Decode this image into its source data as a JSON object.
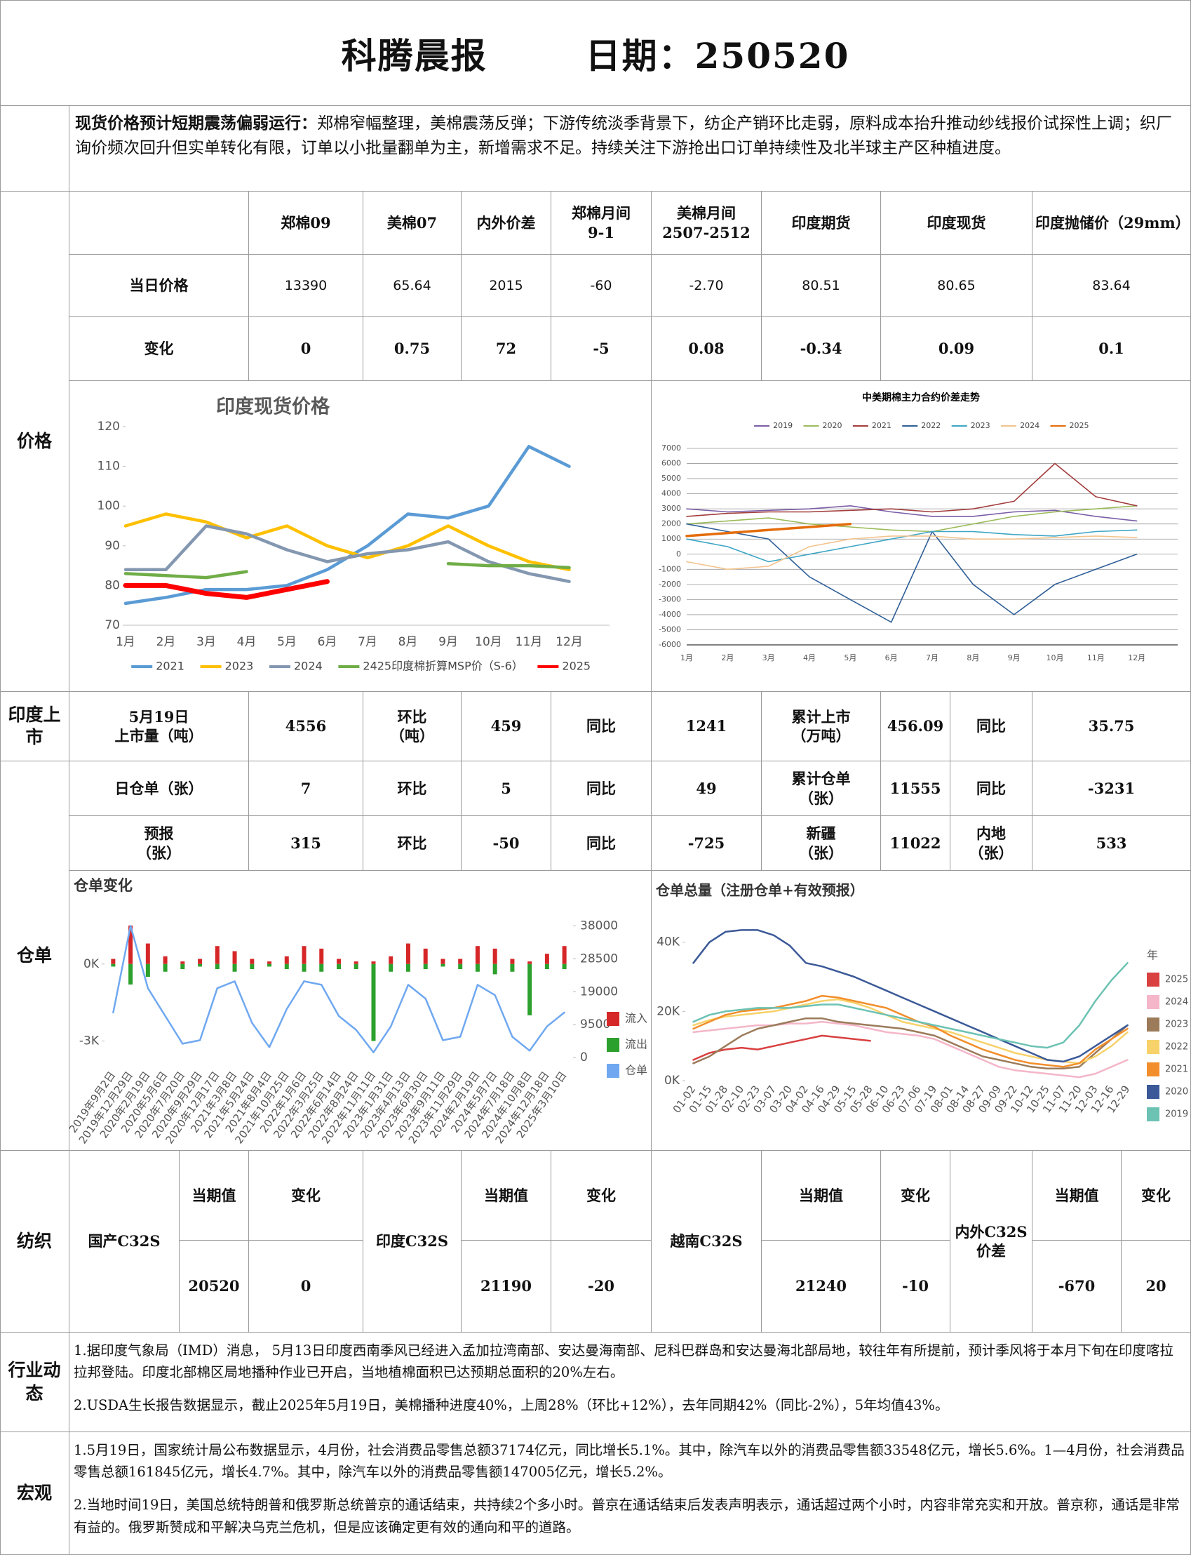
{
  "header": {
    "title": "科腾晨报",
    "date": "日期：250520"
  },
  "summary": {
    "lead": "现货价格预计短期震荡偏弱运行：",
    "body": "郑棉窄幅整理，美棉震荡反弹；下游传统淡季背景下，纺企产销环比走弱，原料成本抬升推动纱线报价试探性上调；织厂询价频次回升但实单转化有限，订单以小批量翻单为主，新增需求不足。持续关注下游抢出口订单持续性及北半球主产区种植进度。"
  },
  "sections": {
    "price": "价格",
    "india": "印度上\n市",
    "warehouse": "仓单",
    "textile": "纺织",
    "industry": "行业动\n态",
    "macro": "宏观"
  },
  "price_table": {
    "columns": [
      "郑棉09",
      "美棉07",
      "内外价差",
      "郑棉月间\n9-1",
      "美棉月间\n2507-2512",
      "印度期货",
      "印度现货",
      "印度抛储价（29mm）"
    ],
    "rows": [
      {
        "label": "当日价格",
        "values": [
          "13390",
          "65.64",
          "2015",
          "-60",
          "-2.70",
          "80.51",
          "80.65",
          "83.64"
        ]
      },
      {
        "label": "变化",
        "values": [
          "0",
          "0.75",
          "72",
          "-5",
          "0.08",
          "-0.34",
          "0.09",
          "0.1"
        ]
      }
    ]
  },
  "india_listing": [
    "5月19日\n上市量（吨）",
    "4556",
    "环比\n（吨）",
    "459",
    "同比",
    "1241",
    "累计上市\n（万吨）",
    "456.09",
    "同比",
    "35.75"
  ],
  "warehouse_table": [
    [
      "日仓单（张）",
      "7",
      "环比",
      "5",
      "同比",
      "49",
      "累计仓单\n（张）",
      "11555",
      "同比",
      "-3231"
    ],
    [
      "预报\n（张）",
      "315",
      "环比",
      "-50",
      "同比",
      "-725",
      "新疆\n（张）",
      "11022",
      "内地\n（张）",
      "533"
    ]
  ],
  "textile": {
    "headers": [
      "当期值",
      "变化"
    ],
    "items": [
      {
        "name": "国产C32S",
        "current": "20520",
        "change": "0"
      },
      {
        "name": "印度C32S",
        "current": "21190",
        "change": "-20"
      },
      {
        "name": "越南C32S",
        "current": "21240",
        "change": "-10"
      },
      {
        "name": "内外C32S\n价差",
        "current": "-670",
        "change": "20"
      }
    ]
  },
  "industry": [
    "1.据印度气象局（IMD）消息， 5月13日印度西南季风已经进入孟加拉湾南部、安达曼海南部、尼科巴群岛和安达曼海北部局地，较往年有所提前，预计季风将于本月下旬在印度喀拉拉邦登陆。印度北部棉区局地播种作业已开启，当地植棉面积已达预期总面积的20%左右。",
    "2.USDA生长报告数据显示，截止2025年5月19日，美棉播种进度40%，上周28%（环比+12%），去年同期42%（同比-2%），5年均值43%。"
  ],
  "macro": [
    "1.5月19日，国家统计局公布数据显示，4月份，社会消费品零售总额37174亿元，同比增长5.1%。其中，除汽车以外的消费品零售额33548亿元，增长5.6%。1—4月份，社会消费品零售总额161845亿元，增长4.7%。其中，除汽车以外的消费品零售额147005亿元，增长5.2%。",
    "2.当地时间19日，美国总统特朗普和俄罗斯总统普京的通话结束，共持续2个多小时。普京在通话结束后发表声明表示，通话超过两个小时，内容非常充实和开放。普京称，通话是非常有益的。俄罗斯赞成和平解决乌克兰危机，但是应该确定更有效的通向和平的道路。"
  ],
  "charts": [
    {
      "type": "line",
      "title": "印度现货价格",
      "categories": [
        "1月",
        "2月",
        "3月",
        "4月",
        "5月",
        "6月",
        "7月",
        "8月",
        "9月",
        "10月",
        "11月",
        "12月"
      ],
      "ylim": [
        70,
        120
      ],
      "yticks": [
        70,
        80,
        90,
        100,
        110,
        120
      ],
      "grid": false,
      "legend": "bottom",
      "series": [
        {
          "name": "2021",
          "color": "#5b9bd5",
          "values": [
            75.5,
            77,
            79,
            79,
            80,
            84,
            90,
            98,
            97,
            100,
            115,
            110
          ]
        },
        {
          "name": "2023",
          "color": "#ffc000",
          "values": [
            95,
            98,
            96,
            92,
            95,
            90,
            87,
            90,
            95,
            90,
            86,
            84
          ]
        },
        {
          "name": "2024",
          "color": "#8497b0",
          "values": [
            84,
            84,
            95,
            93,
            89,
            86,
            88,
            89,
            91,
            86,
            83,
            81
          ]
        },
        {
          "name": "2425印度棉折算MSP价（S-6）",
          "color": "#70ad47",
          "values": [
            83,
            82.5,
            82,
            83.5,
            null,
            null,
            null,
            null,
            85.5,
            85,
            85,
            84.5
          ]
        },
        {
          "name": "2025",
          "color": "#ff0000",
          "values": [
            80,
            80,
            78,
            77,
            79,
            81,
            null,
            null,
            null,
            null,
            null,
            null
          ]
        }
      ]
    },
    {
      "type": "line",
      "title": "中美期棉主力合约价差走势",
      "categories": [
        "1月",
        "2月",
        "3月",
        "4月",
        "5月",
        "6月",
        "7月",
        "8月",
        "9月",
        "10月",
        "11月",
        "12月"
      ],
      "ylim": [
        -6000,
        7000
      ],
      "yticks": [
        -6000,
        -5000,
        -4000,
        -3000,
        -2000,
        -1000,
        0,
        1000,
        2000,
        3000,
        4000,
        5000,
        6000,
        7000
      ],
      "grid": true,
      "legend": "top",
      "series": [
        {
          "name": "2019",
          "color": "#7b5ea7",
          "values": [
            3000,
            2800,
            2900,
            3000,
            3200,
            2800,
            2500,
            2500,
            2800,
            2900,
            2500,
            2200
          ]
        },
        {
          "name": "2020",
          "color": "#9bbb59",
          "values": [
            2000,
            2200,
            2400,
            2000,
            1800,
            1600,
            1500,
            2000,
            2500,
            2800,
            3000,
            3200
          ]
        },
        {
          "name": "2021",
          "color": "#a33c3c",
          "values": [
            2500,
            2700,
            2800,
            2800,
            2900,
            3000,
            2800,
            3000,
            3500,
            6000,
            3800,
            3200
          ]
        },
        {
          "name": "2022",
          "color": "#2f5f98",
          "values": [
            2000,
            1500,
            1000,
            -1500,
            -3000,
            -4500,
            1500,
            -2000,
            -4000,
            -2000,
            -1000,
            0
          ]
        },
        {
          "name": "2023",
          "color": "#3ea6c4",
          "values": [
            1000,
            500,
            -500,
            0,
            500,
            1000,
            1500,
            1500,
            1300,
            1200,
            1500,
            1600
          ]
        },
        {
          "name": "2024",
          "color": "#f2c48d",
          "values": [
            -500,
            -1000,
            -800,
            500,
            1000,
            1200,
            1200,
            1000,
            1000,
            1100,
            1200,
            1100
          ]
        },
        {
          "name": "2025",
          "color": "#e46c0a",
          "values": [
            1200,
            1400,
            1600,
            1800,
            2000,
            null,
            null,
            null,
            null,
            null,
            null,
            null
          ]
        }
      ]
    },
    {
      "type": "line",
      "title": "仓单变化",
      "categories": [
        "2019年9月2日",
        "2019年12月29日",
        "2020年2月19日",
        "2020年5月6日",
        "2020年7月20日",
        "2020年9月29日",
        "2020年12月17日",
        "2021年3月8日",
        "2021年5月24日",
        "2021年8月4日",
        "2021年10月25日",
        "2022年1月6日",
        "2022年3月25日",
        "2022年6月14日",
        "2022年8月24日",
        "2022年11月11日",
        "2023年1月31日",
        "2023年4月13日",
        "2023年6月30日",
        "2023年9月11日",
        "2023年11月29日",
        "2024年2月19日",
        "2024年5月7日",
        "2024年7月18日",
        "2024年10月8日",
        "2024年12月18日",
        "2025年3月10日"
      ],
      "ylim": [
        -4000,
        1800
      ],
      "yticks": [
        {
          "value": -3000,
          "label": "-3K"
        },
        {
          "value": 0,
          "label": "0K"
        }
      ],
      "y2lim": [
        -2600,
        40300
      ],
      "y2ticks": [
        0,
        9500,
        19000,
        28500,
        38000
      ],
      "grid": false,
      "legend": "right",
      "series": [
        {
          "name": "流入",
          "type": "bar",
          "color": "#d62728",
          "values": [
            200,
            1500,
            800,
            300,
            100,
            200,
            700,
            500,
            200,
            100,
            300,
            700,
            600,
            200,
            100,
            100,
            300,
            800,
            600,
            200,
            200,
            700,
            600,
            200,
            100,
            400,
            700
          ]
        },
        {
          "name": "流出",
          "type": "bar",
          "color": "#2ca02c",
          "values": [
            -100,
            -800,
            -500,
            -300,
            -200,
            -100,
            -200,
            -300,
            -200,
            -100,
            -200,
            -300,
            -300,
            -200,
            -200,
            -3000,
            -300,
            -300,
            -200,
            -100,
            -200,
            -300,
            -400,
            -300,
            -2000,
            -200,
            -200
          ]
        },
        {
          "name": "仓单",
          "axis": "y2",
          "color": "#6fa8f0",
          "values": [
            13000,
            38000,
            20000,
            12000,
            4000,
            5000,
            20000,
            22000,
            10000,
            3000,
            14000,
            22000,
            21000,
            12000,
            8000,
            1500,
            9000,
            21000,
            17000,
            5000,
            6000,
            21000,
            18000,
            6000,
            2000,
            9000,
            13000
          ]
        }
      ]
    },
    {
      "type": "line",
      "title": "仓单总量（注册仓单+有效预报）",
      "categories": [
        "01-02",
        "01-15",
        "01-28",
        "02-10",
        "02-23",
        "03-07",
        "03-20",
        "04-02",
        "04-16",
        "04-29",
        "05-15",
        "05-28",
        "06-10",
        "06-23",
        "07-06",
        "07-19",
        "08-01",
        "08-14",
        "08-27",
        "09-09",
        "09-22",
        "10-12",
        "10-25",
        "11-07",
        "11-20",
        "12-03",
        "12-16",
        "12-29"
      ],
      "ylim": [
        0,
        45000
      ],
      "yticks": [
        {
          "value": 0,
          "label": "0K"
        },
        {
          "value": 20000,
          "label": "20K"
        },
        {
          "value": 40000,
          "label": "40K"
        }
      ],
      "grid": false,
      "legend": "right",
      "legend_title": "年",
      "series": [
        {
          "name": "2025",
          "color": "#d94040",
          "values": [
            6000,
            8000,
            9000,
            9500,
            9000,
            10000,
            11000,
            12000,
            13000,
            12500,
            12000,
            11500,
            null,
            null,
            null,
            null,
            null,
            null,
            null,
            null,
            null,
            null,
            null,
            null,
            null,
            null,
            null,
            null
          ]
        },
        {
          "name": "2024",
          "color": "#f4b6c8",
          "values": [
            14000,
            14500,
            15000,
            15500,
            16000,
            16000,
            16500,
            16500,
            17000,
            16500,
            16000,
            15000,
            14000,
            13500,
            13000,
            12000,
            10000,
            8000,
            6000,
            4000,
            3000,
            2500,
            2000,
            1500,
            1000,
            2000,
            4000,
            6000
          ]
        },
        {
          "name": "2023",
          "color": "#9b7b5a",
          "values": [
            5000,
            7000,
            10000,
            13000,
            15000,
            16000,
            17000,
            18000,
            18000,
            17000,
            16500,
            16000,
            15500,
            15000,
            14000,
            13000,
            11000,
            9000,
            7000,
            6000,
            5000,
            4000,
            3500,
            3500,
            4000,
            8000,
            12000,
            16000
          ]
        },
        {
          "name": "2022",
          "color": "#f7d26a",
          "values": [
            16000,
            17500,
            18500,
            19000,
            19500,
            20000,
            21000,
            22000,
            23000,
            23500,
            22500,
            21000,
            19000,
            17000,
            16000,
            15000,
            14000,
            12500,
            11000,
            9500,
            8000,
            7000,
            6000,
            5500,
            5000,
            7000,
            10000,
            14000
          ]
        },
        {
          "name": "2021",
          "color": "#f28e2b",
          "values": [
            15000,
            17000,
            19000,
            20000,
            20500,
            21000,
            22000,
            23000,
            24500,
            24000,
            23000,
            22000,
            21000,
            19000,
            17000,
            15500,
            13000,
            11000,
            9000,
            7500,
            6000,
            5000,
            4500,
            4000,
            5000,
            9000,
            12000,
            15000
          ]
        },
        {
          "name": "2020",
          "color": "#3b5998",
          "values": [
            34000,
            40000,
            43000,
            43500,
            43500,
            42000,
            39000,
            34000,
            33000,
            31500,
            30000,
            28000,
            26000,
            24000,
            22000,
            20000,
            18000,
            16000,
            14000,
            12000,
            10000,
            8000,
            6000,
            5500,
            7000,
            10000,
            13000,
            16000
          ]
        },
        {
          "name": "2019",
          "color": "#6cc2b3",
          "values": [
            17000,
            19000,
            20000,
            20500,
            21000,
            21000,
            21000,
            21500,
            22000,
            22000,
            21000,
            20000,
            19000,
            18000,
            17000,
            16000,
            15000,
            14000,
            13000,
            12000,
            11000,
            10000,
            9500,
            11000,
            16000,
            23000,
            29000,
            34000
          ]
        }
      ]
    }
  ]
}
